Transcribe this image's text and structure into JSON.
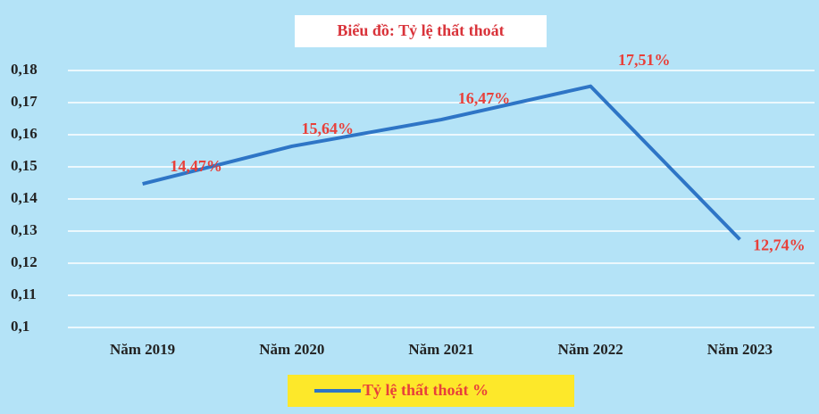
{
  "chart_data": {
    "type": "line",
    "title": "Biểu đồ: Tỷ lệ thất thoát",
    "categories": [
      "Năm 2019",
      "Năm 2020",
      "Năm 2021",
      "Năm 2022",
      "Năm 2023"
    ],
    "series": [
      {
        "name": "Tỷ lệ thất thoát %",
        "color": "#2e75c6",
        "values": [
          0.1447,
          0.1564,
          0.1647,
          0.1751,
          0.1274
        ],
        "value_labels": [
          "14,47%",
          "15,64%",
          "16,47%",
          "17,51%",
          "12,74%"
        ]
      }
    ],
    "ylim": [
      0.1,
      0.18
    ],
    "yticks": [
      {
        "value": 0.1,
        "label": "0,1"
      },
      {
        "value": 0.11,
        "label": "0,11"
      },
      {
        "value": 0.12,
        "label": "0,12"
      },
      {
        "value": 0.13,
        "label": "0,13"
      },
      {
        "value": 0.14,
        "label": "0,14"
      },
      {
        "value": 0.15,
        "label": "0,15"
      },
      {
        "value": 0.16,
        "label": "0,16"
      },
      {
        "value": 0.17,
        "label": "0,17"
      },
      {
        "value": 0.18,
        "label": "0,18"
      }
    ],
    "grid": true,
    "legend": "bottom"
  }
}
